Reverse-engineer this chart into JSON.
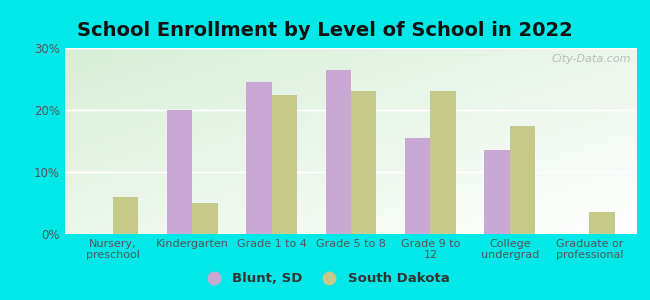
{
  "title": "School Enrollment by Level of School in 2022",
  "categories": [
    "Nursery,\npreschool",
    "Kindergarten",
    "Grade 1 to 4",
    "Grade 5 to 8",
    "Grade 9 to\n12",
    "College\nundergrad",
    "Graduate or\nprofessional"
  ],
  "blunt_values": [
    0.0,
    20.0,
    24.5,
    26.5,
    15.5,
    13.5,
    0.0
  ],
  "sd_values": [
    6.0,
    5.0,
    22.5,
    23.0,
    23.0,
    17.5,
    3.5
  ],
  "blunt_color": "#c9a8d4",
  "sd_color": "#c5c98a",
  "background_outer": "#00e8e8",
  "background_inner_topleft": "#d8eed8",
  "background_inner_bottomright": "#ffffff",
  "ylim": [
    0,
    30
  ],
  "yticks": [
    0,
    10,
    20,
    30
  ],
  "legend_blunt": "Blunt, SD",
  "legend_sd": "South Dakota",
  "bar_width": 0.32,
  "watermark": "City-Data.com",
  "title_fontsize": 14,
  "tick_fontsize": 8,
  "ytick_fontsize": 8.5
}
